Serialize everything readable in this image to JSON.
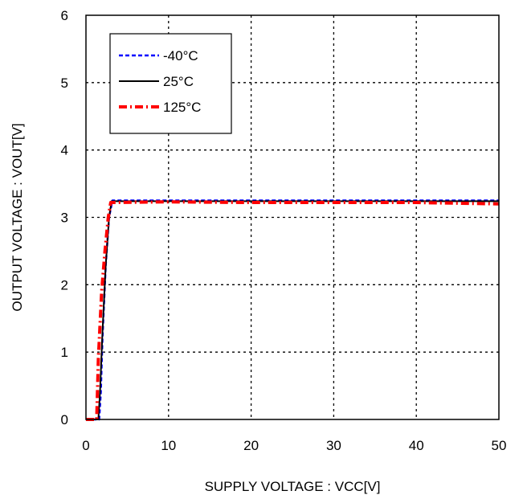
{
  "chart_data": {
    "type": "line",
    "title": "",
    "xlabel": "SUPPLY VOLTAGE : VCC[V]",
    "ylabel": "OUTPUT VOLTAGE : VOUT[V]",
    "xlim": [
      0,
      50
    ],
    "ylim": [
      0,
      6
    ],
    "xticks": [
      0,
      10,
      20,
      30,
      40,
      50
    ],
    "yticks": [
      0,
      1,
      2,
      3,
      4,
      5,
      6
    ],
    "grid": true,
    "legend_position": "top-left",
    "series": [
      {
        "name": "-40°C",
        "color": "#0000ff",
        "style": "dashed",
        "x": [
          0,
          1.6,
          1.8,
          2.0,
          2.4,
          2.8,
          3.2,
          10,
          20,
          30,
          40,
          50
        ],
        "y": [
          0,
          0,
          0.4,
          1.2,
          2.3,
          3.0,
          3.25,
          3.25,
          3.25,
          3.25,
          3.25,
          3.25
        ]
      },
      {
        "name": "25°C",
        "color": "#000000",
        "style": "solid",
        "x": [
          0,
          1.5,
          1.7,
          2.0,
          2.4,
          2.8,
          3.1,
          10,
          20,
          30,
          40,
          50
        ],
        "y": [
          0,
          0,
          0.4,
          1.3,
          2.3,
          3.0,
          3.24,
          3.24,
          3.24,
          3.24,
          3.24,
          3.24
        ]
      },
      {
        "name": "125°C",
        "color": "#ff0000",
        "style": "dashdot",
        "x": [
          0,
          1.3,
          1.5,
          1.9,
          2.3,
          2.7,
          3.0,
          10,
          20,
          30,
          40,
          50
        ],
        "y": [
          0,
          0,
          0.9,
          1.9,
          2.5,
          3.0,
          3.22,
          3.23,
          3.22,
          3.22,
          3.22,
          3.2
        ]
      }
    ]
  }
}
